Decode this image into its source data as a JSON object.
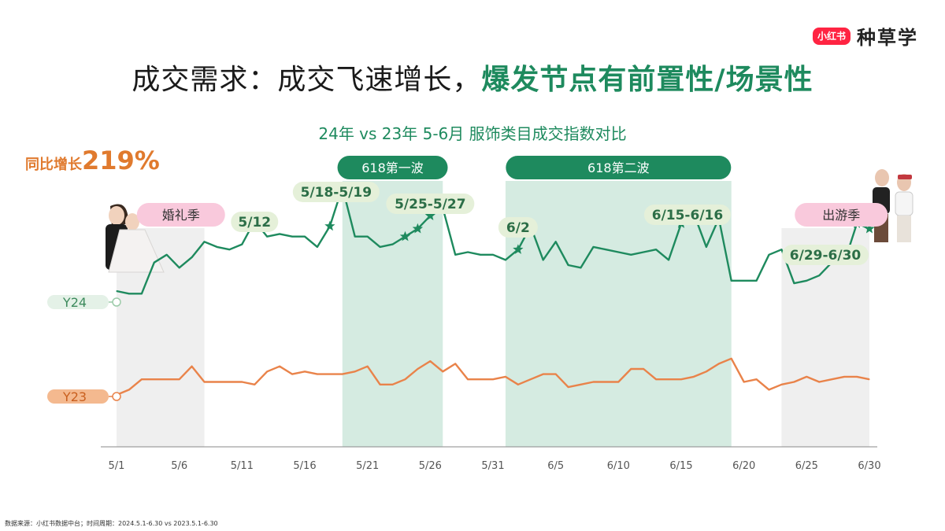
{
  "brand": {
    "logo_text": "小红书",
    "name": "种草学"
  },
  "title": {
    "part1": "成交需求：成交飞速增长，",
    "part2": "爆发节点有前置性/场景性"
  },
  "growth": {
    "label": "同比增长",
    "value": "219%"
  },
  "source_note": "数据来源：小红书数据中台；时间周期：2024.5.1-6.30 vs 2023.5.1-6.30",
  "colors": {
    "y24": "#1e8a5e",
    "y23": "#e9834a",
    "grey_band": "#efefef",
    "green_band": "#d5ebe1",
    "pink": "#f9c9dc"
  },
  "chart_data": {
    "type": "line",
    "title": "24年 vs 23年 5-6月 服饰类目成交指数对比",
    "x_tick_labels": [
      "5/1",
      "5/6",
      "5/11",
      "5/16",
      "5/21",
      "5/26",
      "5/31",
      "6/5",
      "6/10",
      "6/15",
      "6/20",
      "6/25",
      "6/30"
    ],
    "x_tick_days": [
      1,
      6,
      11,
      16,
      21,
      26,
      31,
      36,
      41,
      46,
      51,
      56,
      61
    ],
    "ylim": [
      0,
      100
    ],
    "series": [
      {
        "name": "Y24",
        "color": "#1e8a5e",
        "values": [
          60,
          59,
          59,
          71,
          74,
          69,
          73,
          79,
          77,
          76,
          78,
          87,
          81,
          82,
          81,
          81,
          77,
          85,
          100,
          81,
          81,
          77,
          78,
          81,
          84,
          89,
          92,
          74,
          75,
          74,
          74,
          72,
          76,
          85,
          72,
          79,
          70,
          69,
          77,
          76,
          75,
          74,
          75,
          76,
          72,
          86,
          90,
          77,
          88,
          64,
          64,
          64,
          74,
          76,
          63,
          64,
          66,
          71,
          71,
          86,
          84
        ]
      },
      {
        "name": "Y23",
        "color": "#e9834a",
        "values": [
          20,
          22,
          26,
          26,
          26,
          26,
          31,
          25,
          25,
          25,
          25,
          24,
          29,
          31,
          28,
          29,
          28,
          28,
          28,
          29,
          31,
          24,
          24,
          26,
          30,
          33,
          29,
          32,
          26,
          26,
          26,
          27,
          24,
          26,
          28,
          28,
          23,
          24,
          25,
          25,
          25,
          30,
          30,
          26,
          26,
          26,
          27,
          29,
          32,
          34,
          25,
          26,
          22,
          24,
          25,
          27,
          25,
          26,
          27,
          27,
          26
        ]
      }
    ],
    "bands": [
      {
        "start": 1,
        "end": 8,
        "style": "grey",
        "label": "婚礼季"
      },
      {
        "start": 19,
        "end": 27,
        "style": "green",
        "label": "618第一波"
      },
      {
        "start": 32,
        "end": 50,
        "style": "green",
        "label": "618第二波"
      },
      {
        "start": 54,
        "end": 61,
        "style": "grey",
        "label": "出游季"
      }
    ],
    "stars": [
      12,
      18,
      19,
      24,
      25,
      26,
      33,
      46,
      47,
      60,
      61
    ],
    "annotations": [
      {
        "text": "5/12",
        "day": 12
      },
      {
        "text": "5/18-5/19",
        "day": 18.5
      },
      {
        "text": "5/25-5/27",
        "day": 26
      },
      {
        "text": "6/2",
        "day": 33
      },
      {
        "text": "6/15-6/16",
        "day": 46.5
      },
      {
        "text": "6/29-6/30",
        "day": 60.5
      }
    ]
  }
}
